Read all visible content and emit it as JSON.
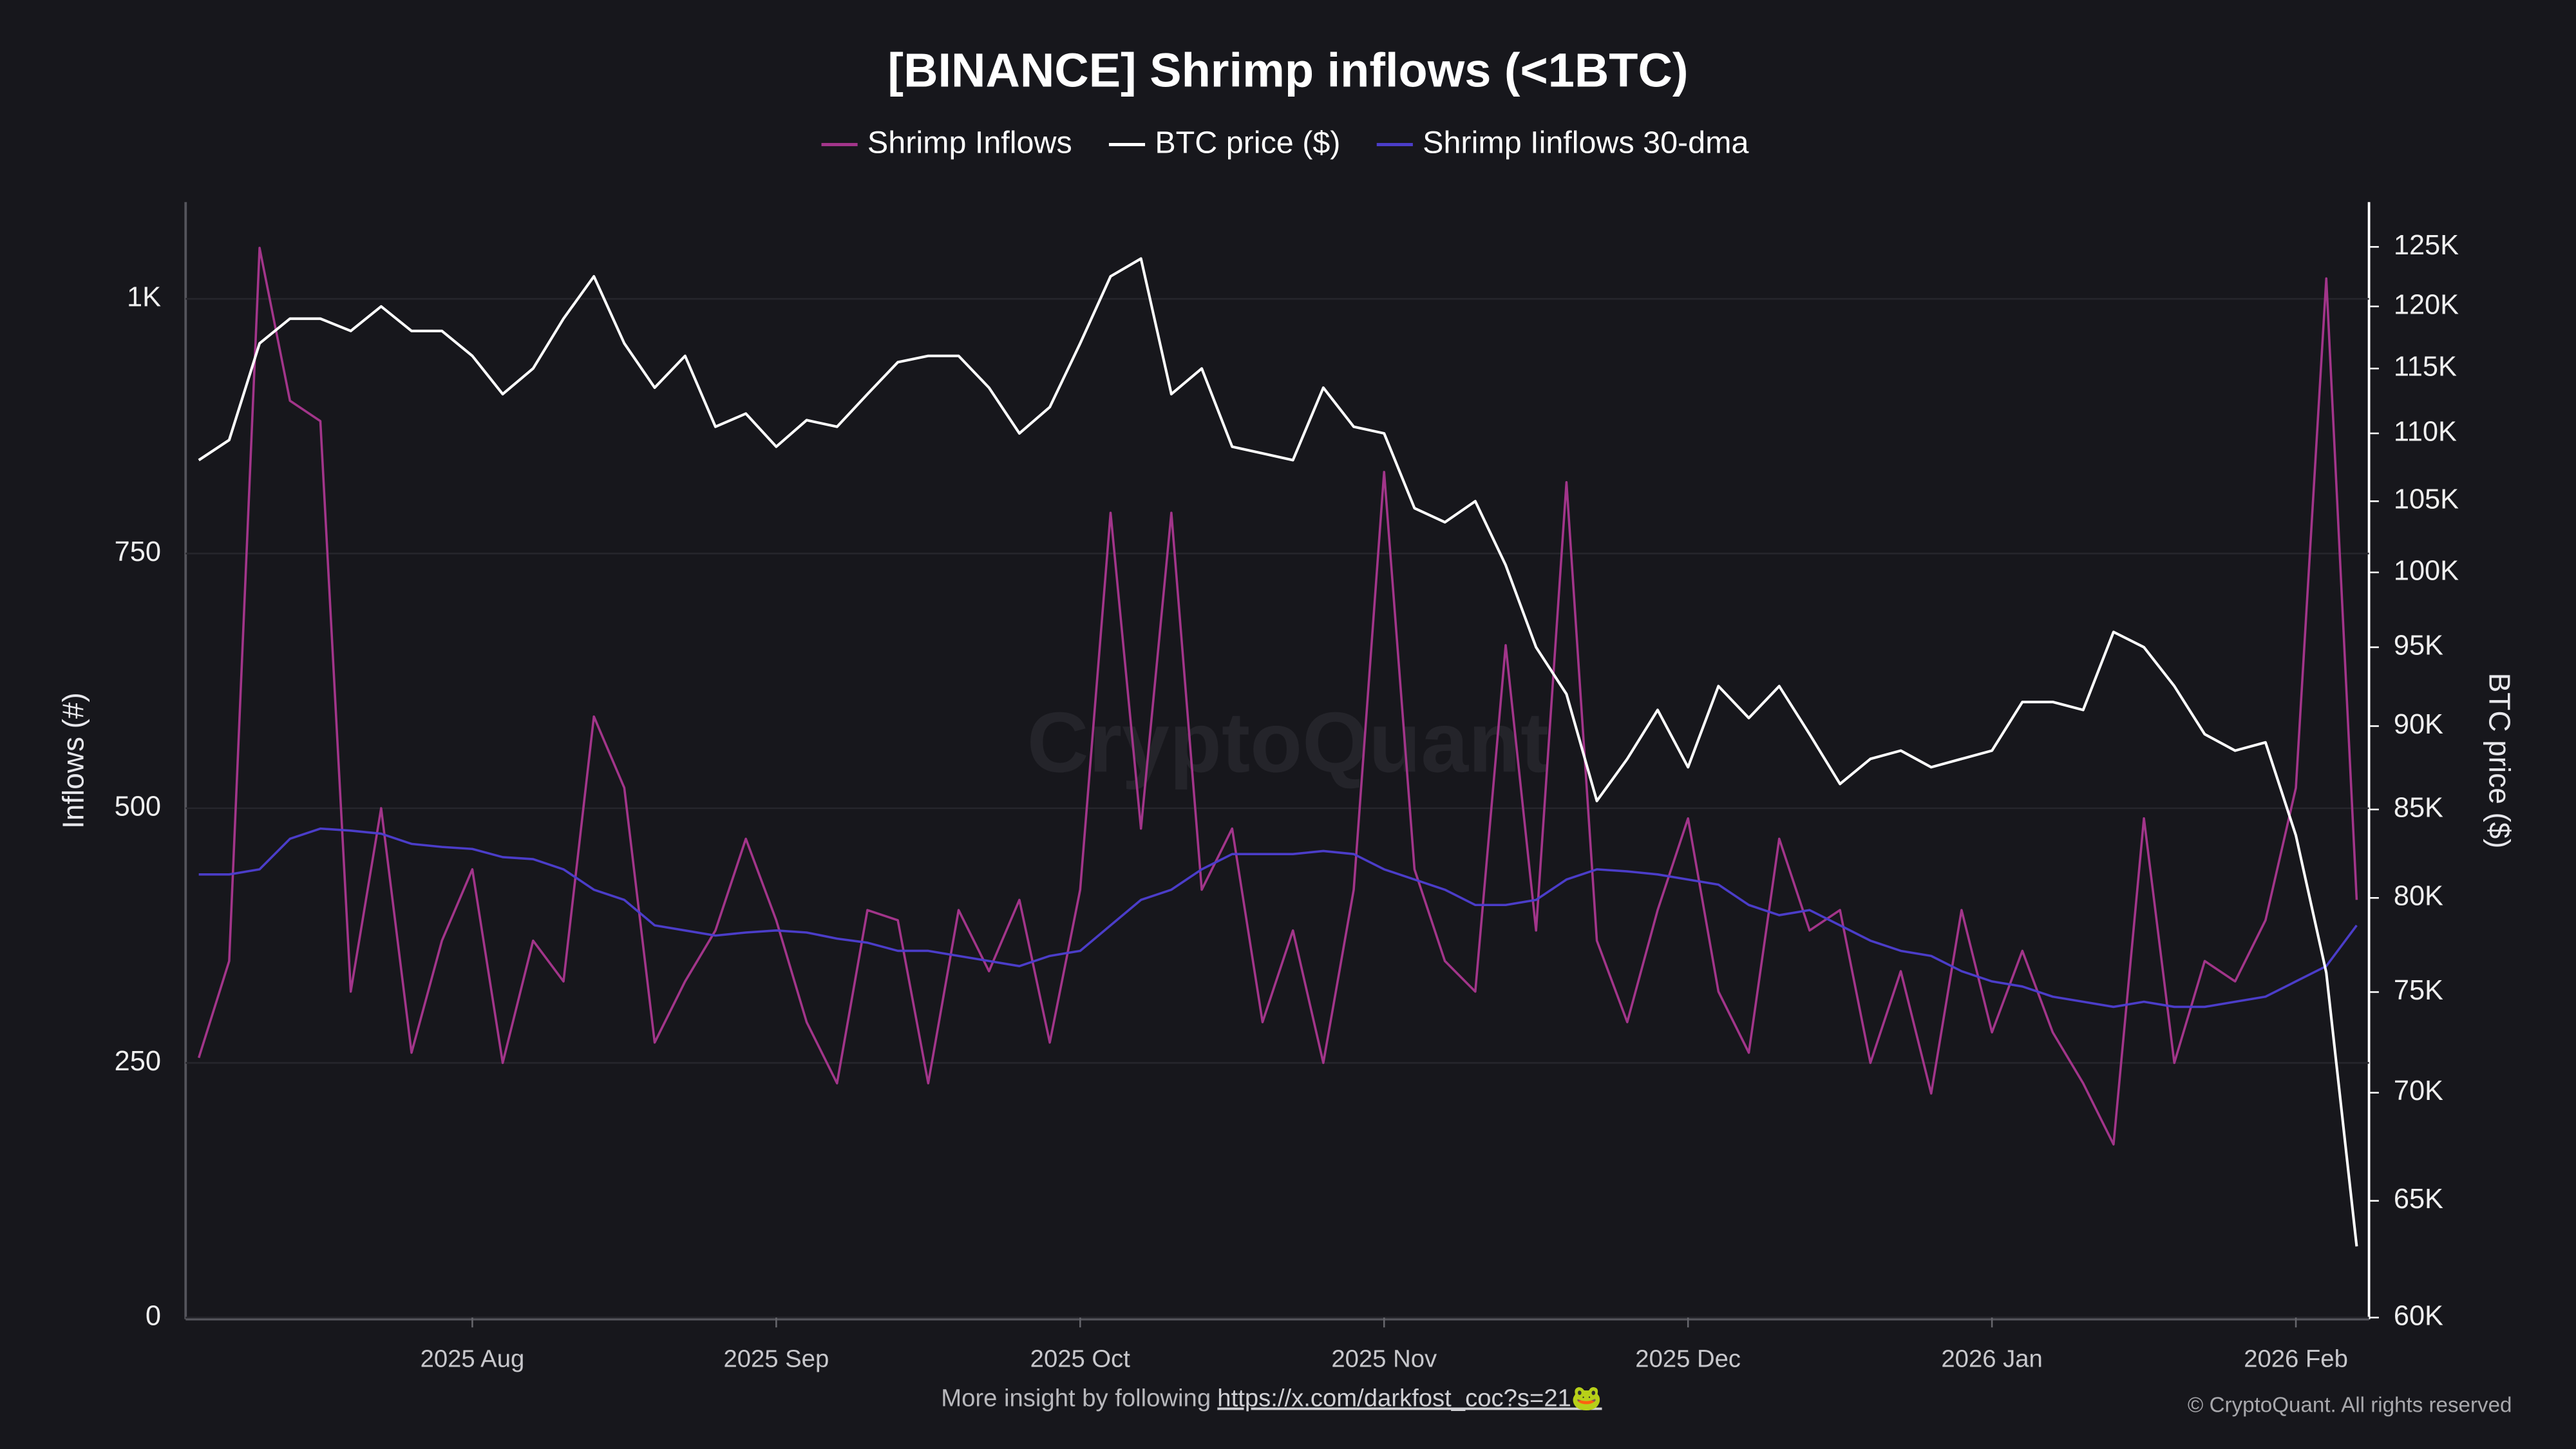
{
  "chart_data": {
    "type": "line",
    "title": "[BINANCE] Shrimp inflows (<1BTC)",
    "y_label": "Inflows (#)",
    "y2_label": "BTC price ($)",
    "watermark": "CryptoQuant",
    "categories": [
      null,
      null,
      null,
      null,
      null,
      null,
      null,
      null,
      null,
      "2025 Aug",
      null,
      null,
      null,
      null,
      null,
      null,
      null,
      null,
      null,
      "2025 Sep",
      null,
      null,
      null,
      null,
      null,
      null,
      null,
      null,
      null,
      "2025 Oct",
      null,
      null,
      null,
      null,
      null,
      null,
      null,
      null,
      null,
      "2025 Nov",
      null,
      null,
      null,
      null,
      null,
      null,
      null,
      null,
      null,
      "2025 Dec",
      null,
      null,
      null,
      null,
      null,
      null,
      null,
      null,
      null,
      "2026 Jan",
      null,
      null,
      null,
      null,
      null,
      null,
      null,
      null,
      null,
      "2026 Feb",
      null,
      null
    ],
    "series": [
      {
        "name": "Shrimp Inflows",
        "color": "#a2358a",
        "axis": "y",
        "values": [
          255,
          350,
          1050,
          900,
          880,
          320,
          500,
          260,
          370,
          440,
          250,
          370,
          330,
          590,
          520,
          270,
          330,
          380,
          470,
          390,
          290,
          230,
          400,
          390,
          230,
          400,
          340,
          410,
          270,
          420,
          790,
          480,
          790,
          420,
          480,
          290,
          380,
          250,
          420,
          830,
          440,
          350,
          320,
          660,
          380,
          820,
          370,
          290,
          400,
          490,
          320,
          260,
          470,
          380,
          400,
          250,
          340,
          220,
          400,
          280,
          360,
          280,
          230,
          170,
          490,
          250,
          350,
          330,
          390,
          520,
          1020,
          410
        ]
      },
      {
        "name": "BTC price ($)",
        "color": "#ffffff",
        "axis": "y2",
        "values": [
          108000,
          109500,
          117000,
          119000,
          119000,
          118000,
          120000,
          118000,
          118000,
          116000,
          113000,
          115000,
          119000,
          122500,
          117000,
          113500,
          116000,
          110500,
          111500,
          109000,
          111000,
          110500,
          113000,
          115500,
          116000,
          116000,
          113500,
          110000,
          112000,
          117000,
          122500,
          124000,
          113000,
          115000,
          109000,
          108500,
          108000,
          113500,
          110500,
          110000,
          104500,
          103500,
          105000,
          100500,
          95000,
          92000,
          85500,
          88000,
          91000,
          87500,
          92500,
          90500,
          92500,
          89500,
          86500,
          88000,
          88500,
          87500,
          88000,
          88500,
          91500,
          91500,
          91000,
          96000,
          95000,
          92500,
          89500,
          88500,
          89000,
          83500,
          76000,
          63000
        ]
      },
      {
        "name": "Shrimp Iinflows 30-dma",
        "color": "#4b3dc9",
        "axis": "y",
        "values": [
          435,
          435,
          440,
          470,
          480,
          478,
          475,
          465,
          462,
          460,
          452,
          450,
          440,
          420,
          410,
          385,
          380,
          375,
          378,
          380,
          378,
          372,
          368,
          360,
          360,
          355,
          350,
          345,
          355,
          360,
          385,
          410,
          420,
          440,
          455,
          455,
          455,
          458,
          455,
          440,
          430,
          420,
          405,
          405,
          410,
          430,
          440,
          438,
          435,
          430,
          425,
          405,
          395,
          400,
          385,
          370,
          360,
          355,
          340,
          330,
          325,
          315,
          310,
          305,
          310,
          305,
          305,
          310,
          315,
          330,
          345,
          385
        ]
      }
    ],
    "ylim": [
      0,
      1095
    ],
    "yticks": [
      0,
      250,
      500,
      750,
      {
        "value": 1000,
        "label": "1K"
      }
    ],
    "y2lim": [
      60000,
      128900
    ],
    "y2scale": "log",
    "y2ticks": [
      {
        "value": 60000,
        "label": "60K"
      },
      {
        "value": 65000,
        "label": "65K"
      },
      {
        "value": 70000,
        "label": "70K"
      },
      {
        "value": 75000,
        "label": "75K"
      },
      {
        "value": 80000,
        "label": "80K"
      },
      {
        "value": 85000,
        "label": "85K"
      },
      {
        "value": 90000,
        "label": "90K"
      },
      {
        "value": 95000,
        "label": "95K"
      },
      {
        "value": 100000,
        "label": "100K"
      },
      {
        "value": 105000,
        "label": "105K"
      },
      {
        "value": 110000,
        "label": "110K"
      },
      {
        "value": 115000,
        "label": "115K"
      },
      {
        "value": 120000,
        "label": "120K"
      },
      {
        "value": 125000,
        "label": "125K"
      }
    ],
    "grid": true,
    "legend": "top"
  },
  "footer": {
    "text": "More insight by following",
    "link": "https://x.com/darkfost_coc?s=21🐸"
  },
  "copyright": "© CryptoQuant. All rights reserved"
}
